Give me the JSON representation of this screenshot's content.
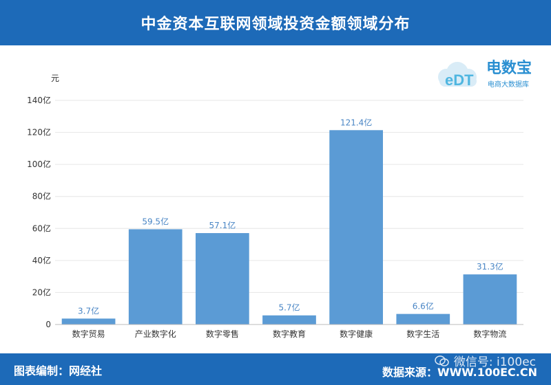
{
  "header": {
    "title": "中金资本互联网领域投资金额领域分布"
  },
  "footer": {
    "left_label": "图表编制：网经社",
    "right_label": "数据来源：WWW.100EC.CN",
    "watermark": "微信号: i100ec"
  },
  "logo": {
    "brand": "电数宝",
    "subtitle": "电商大数据库",
    "mark": "eDT"
  },
  "colors": {
    "bar": "#5b9bd5",
    "header": "#1d6ab8",
    "label": "#4a86c5",
    "grid": "#e6e6e6",
    "axis": "#333333"
  },
  "chart_data": {
    "type": "bar",
    "unit_label": "元",
    "categories": [
      "数字贸易",
      "产业数字化",
      "数字零售",
      "数字教育",
      "数字健康",
      "数字生活",
      "数字物流"
    ],
    "values": [
      3.7,
      59.5,
      57.1,
      5.7,
      121.4,
      6.6,
      31.3
    ],
    "data_labels": [
      "3.7亿",
      "59.5亿",
      "57.1亿",
      "5.7亿",
      "121.4亿",
      "6.6亿",
      "31.3亿"
    ],
    "y_ticks": [
      0,
      20,
      40,
      60,
      80,
      100,
      120,
      140
    ],
    "y_tick_labels": [
      "0",
      "20亿",
      "40亿",
      "60亿",
      "80亿",
      "100亿",
      "120亿",
      "140亿"
    ],
    "ylim": [
      0,
      140
    ],
    "grid": true
  }
}
